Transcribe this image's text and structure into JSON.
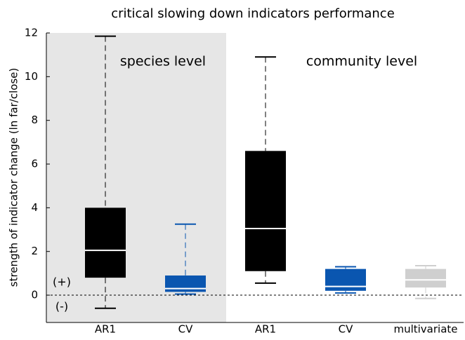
{
  "chart_data": {
    "type": "box",
    "title": "critical slowing down indicators performance",
    "y_label": "strength of indicator change (ln far/close)",
    "annotations": [
      "species level",
      "community level",
      "(+)",
      "(-)"
    ],
    "categories": [
      "AR1",
      "CV",
      "AR1",
      "CV",
      "multivariate"
    ],
    "boxes": [
      {
        "min": -0.6,
        "q1": 0.8,
        "median": 2.05,
        "q3": 4.0,
        "max": 11.85,
        "color": "#000000"
      },
      {
        "min": 0.05,
        "q1": 0.15,
        "median": 0.3,
        "q3": 0.9,
        "max": 3.25,
        "color": "#0a56b0"
      },
      {
        "min": 0.55,
        "q1": 1.1,
        "median": 3.05,
        "q3": 6.6,
        "max": 10.9,
        "color": "#000000"
      },
      {
        "min": 0.1,
        "q1": 0.2,
        "median": 0.4,
        "q3": 1.2,
        "max": 1.3,
        "color": "#0a56b0"
      },
      {
        "min": -0.15,
        "q1": 0.35,
        "median": 0.7,
        "q3": 1.2,
        "max": 1.35,
        "color": "#cfcfcf"
      }
    ],
    "ylim": [
      -1.25,
      12
    ],
    "yticks": [
      0,
      2,
      4,
      6,
      8,
      10,
      12
    ]
  }
}
